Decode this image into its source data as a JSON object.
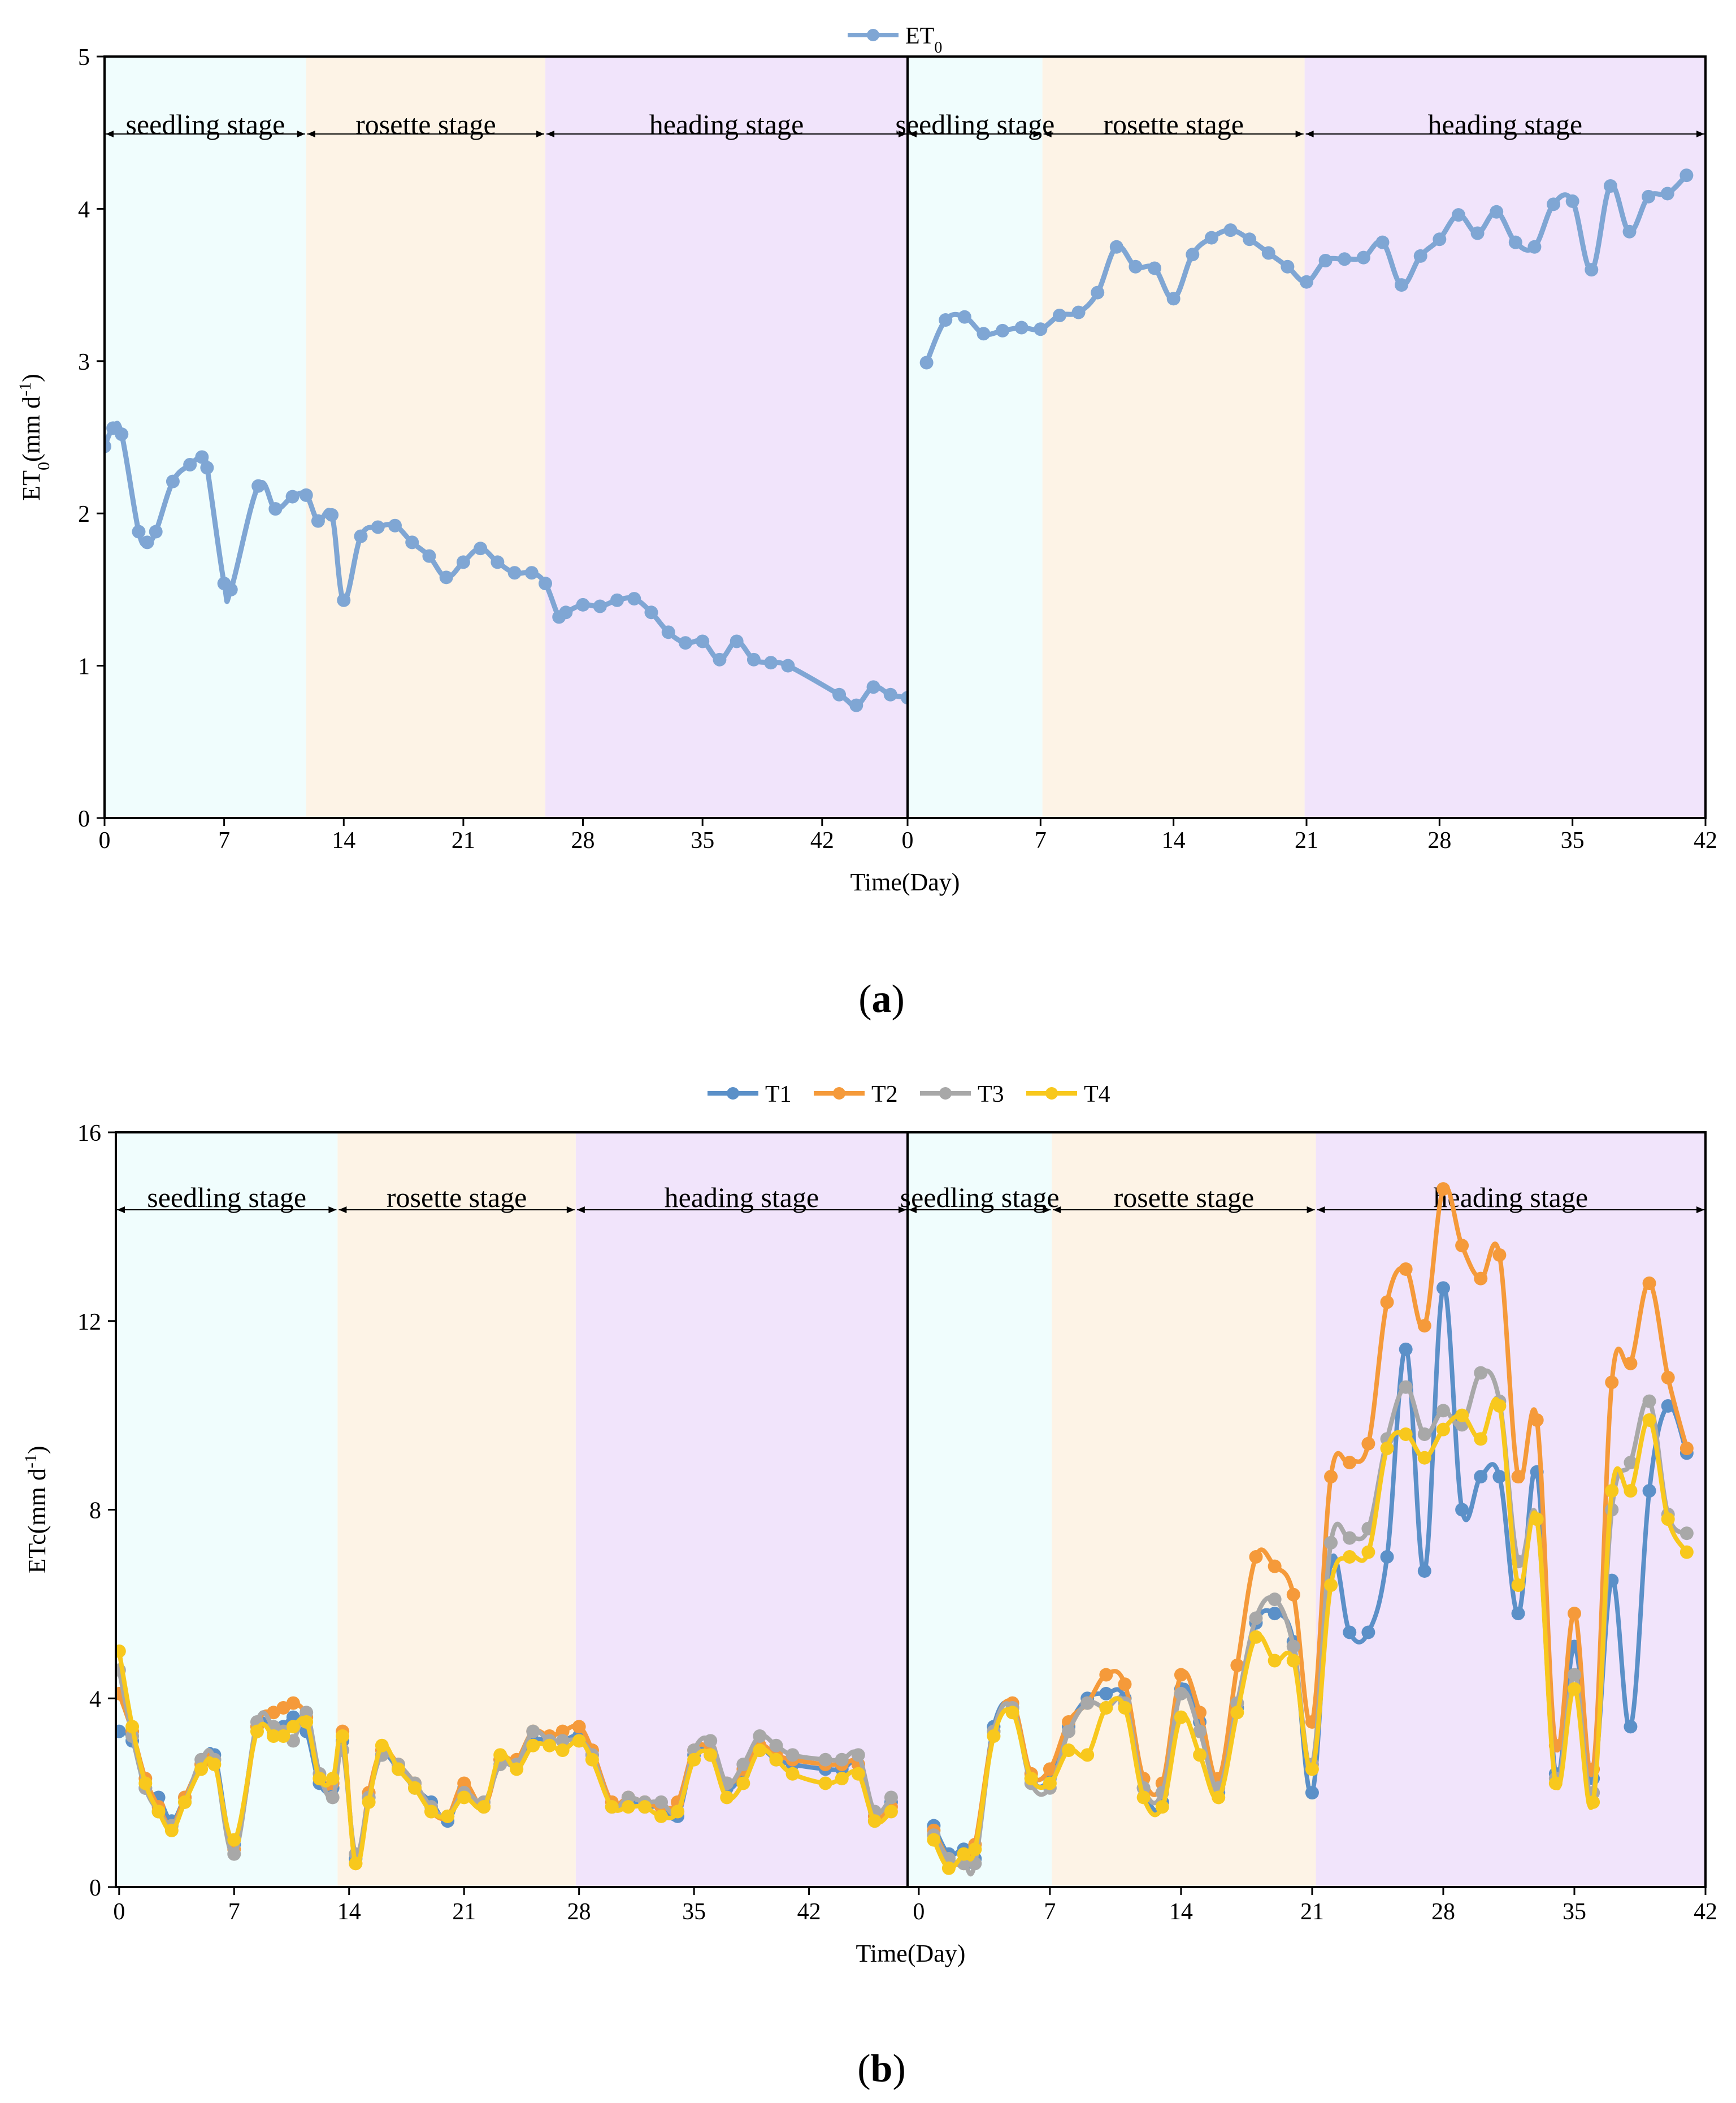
{
  "colors": {
    "seedling_bg": "#f0fdfd",
    "rosette_bg": "#fdf3e6",
    "heading_bg": "#f1e4fb",
    "ET0": "#7fa6d4",
    "T1": "#5b90c8",
    "T2": "#f59a3a",
    "T3": "#a8a8a8",
    "T4": "#f8c81d"
  },
  "chart_data": [
    {
      "type": "line",
      "panel": "a",
      "caption": "(a)",
      "ylabel": "ET0(mm d-1)",
      "ylabel_main": "ET",
      "ylabel_sub": "0",
      "ylabel_mid": "(mm d",
      "ylabel_sup": "-1",
      "ylabel_end": ")",
      "xlabel": "Time(Day)",
      "ylim": [
        0,
        5
      ],
      "yticks": [
        "0",
        "1",
        "2",
        "3",
        "4",
        "5"
      ],
      "legend": [
        {
          "name": "ET0",
          "main": "ET",
          "sub": "0"
        }
      ],
      "left": {
        "xlim": [
          0,
          47
        ],
        "xticks": [
          "0",
          "7",
          "14",
          "21",
          "28",
          "35",
          "42",
          ""
        ],
        "stages": [
          {
            "name": "seedling stage",
            "start": 0,
            "end": 11.8
          },
          {
            "name": "rosette stage",
            "start": 11.8,
            "end": 25.8
          },
          {
            "name": "heading stage",
            "start": 25.8,
            "end": 47
          }
        ],
        "series": [
          {
            "name": "ET0",
            "x": [
              0,
              0.5,
              1,
              2,
              2.5,
              3,
              4,
              5,
              5.7,
              6,
              7,
              7.4,
              9,
              10,
              11,
              11.8,
              12.5,
              13.3,
              14,
              15,
              16,
              17,
              18,
              19,
              20,
              21,
              22,
              23,
              24,
              25,
              25.8,
              26.6,
              27,
              28,
              29,
              30,
              31,
              32,
              33,
              34,
              35,
              36,
              37,
              38,
              39,
              40,
              43,
              44,
              45,
              46,
              47
            ],
            "values": [
              2.44,
              2.56,
              2.52,
              1.88,
              1.81,
              1.88,
              2.21,
              2.32,
              2.37,
              2.3,
              1.54,
              1.5,
              2.18,
              2.03,
              2.11,
              2.12,
              1.95,
              1.99,
              1.43,
              1.85,
              1.91,
              1.92,
              1.81,
              1.72,
              1.58,
              1.68,
              1.77,
              1.68,
              1.61,
              1.61,
              1.54,
              1.32,
              1.35,
              1.4,
              1.39,
              1.43,
              1.44,
              1.35,
              1.22,
              1.15,
              1.16,
              1.04,
              1.16,
              1.04,
              1.02,
              1.0,
              0.81,
              0.74,
              0.86,
              0.81,
              0.79
            ]
          }
        ]
      },
      "right": {
        "xlim": [
          0,
          42
        ],
        "xticks": [
          "0",
          "7",
          "14",
          "21",
          "28",
          "35",
          "42"
        ],
        "stages": [
          {
            "name": "seedling stage",
            "start": 0,
            "end": 7.1
          },
          {
            "name": "rosette stage",
            "start": 7.1,
            "end": 20.9
          },
          {
            "name": "heading stage",
            "start": 20.9,
            "end": 42
          }
        ],
        "series": [
          {
            "name": "ET0",
            "x": [
              1,
              2,
              3,
              4,
              5,
              6,
              7,
              8,
              9,
              10,
              11,
              12,
              13,
              14,
              15,
              16,
              17,
              18,
              19,
              20,
              21,
              22,
              23,
              24,
              25,
              26,
              27,
              28,
              29,
              30,
              31,
              32,
              33,
              34,
              35,
              36,
              37,
              38,
              39,
              40,
              41
            ],
            "values": [
              2.99,
              3.27,
              3.29,
              3.18,
              3.2,
              3.22,
              3.21,
              3.3,
              3.32,
              3.45,
              3.75,
              3.62,
              3.61,
              3.41,
              3.7,
              3.81,
              3.86,
              3.8,
              3.71,
              3.62,
              3.52,
              3.66,
              3.67,
              3.68,
              3.78,
              3.5,
              3.69,
              3.8,
              3.96,
              3.84,
              3.98,
              3.78,
              3.75,
              4.03,
              4.05,
              3.6,
              4.15,
              3.85,
              4.08,
              4.1,
              4.22
            ]
          }
        ]
      }
    },
    {
      "type": "line",
      "panel": "b",
      "caption": "(b)",
      "ylabel": "ETc(mm d-1)",
      "ylabel_main": "ETc",
      "ylabel_mid": "(mm d",
      "ylabel_sup": "-1",
      "ylabel_end": ")",
      "xlabel": "Time(Day)",
      "ylim": [
        0,
        16
      ],
      "yticks": [
        "0",
        "4",
        "8",
        "12",
        "16"
      ],
      "legend": [
        {
          "name": "T1"
        },
        {
          "name": "T2"
        },
        {
          "name": "T3"
        },
        {
          "name": "T4"
        }
      ],
      "left": {
        "xlim": [
          -0.2,
          48
        ],
        "xticks": [
          "0",
          "7",
          "14",
          "21",
          "28",
          "35",
          "42",
          ""
        ],
        "stages": [
          {
            "name": "seedling stage",
            "start": -0.2,
            "end": 13.3
          },
          {
            "name": "rosette stage",
            "start": 13.3,
            "end": 27.8
          },
          {
            "name": "heading stage",
            "start": 27.8,
            "end": 48
          }
        ],
        "x": [
          0,
          0.8,
          1.6,
          2.4,
          3.2,
          4,
          5,
          5.8,
          7,
          8.4,
          9.4,
          10,
          10.6,
          11.4,
          12.2,
          13,
          13.6,
          14.4,
          15.2,
          16,
          17,
          18,
          19,
          20,
          21,
          22.2,
          23.2,
          24.2,
          25.2,
          26.2,
          27,
          28,
          28.8,
          30,
          31,
          32,
          33,
          34,
          35,
          36,
          37,
          38,
          39,
          40,
          41,
          43,
          44,
          45,
          46,
          47
        ],
        "series": [
          {
            "name": "T1",
            "values": [
              3.3,
              3.1,
              2.1,
              1.9,
              1.4,
              1.9,
              2.6,
              2.8,
              0.9,
              3.4,
              3.3,
              3.4,
              3.6,
              3.3,
              2.2,
              2.1,
              3.1,
              0.6,
              1.9,
              2.8,
              2.5,
              2.1,
              1.8,
              1.4,
              2.1,
              1.7,
              2.7,
              2.6,
              3.1,
              3.1,
              3.1,
              3.2,
              2.8,
              1.7,
              1.8,
              1.7,
              1.7,
              1.5,
              2.8,
              2.8,
              2.1,
              2.4,
              2.9,
              2.7,
              2.6,
              2.5,
              2.5,
              2.6,
              1.4,
              1.8
            ]
          },
          {
            "name": "T2",
            "values": [
              4.1,
              3.3,
              2.3,
              1.7,
              1.3,
              1.9,
              2.6,
              2.7,
              0.8,
              3.4,
              3.7,
              3.8,
              3.9,
              3.6,
              2.3,
              2.2,
              3.3,
              0.5,
              2.0,
              2.9,
              2.6,
              2.2,
              1.6,
              1.5,
              2.2,
              1.7,
              2.7,
              2.7,
              3.3,
              3.2,
              3.3,
              3.4,
              2.9,
              1.8,
              1.9,
              1.8,
              1.7,
              1.8,
              2.9,
              2.9,
              2.2,
              2.5,
              3.0,
              2.8,
              2.7,
              2.6,
              2.6,
              2.6,
              1.5,
              1.7
            ]
          },
          {
            "name": "T3",
            "values": [
              4.6,
              3.2,
              2.1,
              1.6,
              1.3,
              1.8,
              2.7,
              2.7,
              0.7,
              3.5,
              3.4,
              3.3,
              3.1,
              3.7,
              2.4,
              1.9,
              2.9,
              0.7,
              1.9,
              2.8,
              2.6,
              2.2,
              1.7,
              1.5,
              2.0,
              1.8,
              2.6,
              2.6,
              3.3,
              3.1,
              3.1,
              3.1,
              2.8,
              1.7,
              1.9,
              1.8,
              1.8,
              1.6,
              2.9,
              3.1,
              2.2,
              2.6,
              3.2,
              3.0,
              2.8,
              2.7,
              2.7,
              2.8,
              1.6,
              1.9
            ]
          },
          {
            "name": "T4",
            "values": [
              5.0,
              3.4,
              2.2,
              1.6,
              1.2,
              1.8,
              2.5,
              2.6,
              1.0,
              3.3,
              3.2,
              3.2,
              3.4,
              3.5,
              2.3,
              2.3,
              3.2,
              0.5,
              1.8,
              3.0,
              2.5,
              2.1,
              1.6,
              1.5,
              1.9,
              1.7,
              2.8,
              2.5,
              3.0,
              3.0,
              2.9,
              3.1,
              2.7,
              1.7,
              1.7,
              1.7,
              1.5,
              1.6,
              2.7,
              2.8,
              1.9,
              2.2,
              2.9,
              2.7,
              2.4,
              2.2,
              2.3,
              2.4,
              1.4,
              1.6
            ]
          }
        ]
      },
      "right": {
        "xlim": [
          -0.6,
          42
        ],
        "xticks": [
          "0",
          "7",
          "14",
          "21",
          "28",
          "35",
          "42"
        ],
        "stages": [
          {
            "name": "seedling stage",
            "start": -0.6,
            "end": 7.1
          },
          {
            "name": "rosette stage",
            "start": 7.1,
            "end": 21.2
          },
          {
            "name": "heading stage",
            "start": 21.2,
            "end": 42
          }
        ],
        "x": [
          0.8,
          1.6,
          2.4,
          3,
          4,
          5,
          6,
          7,
          8,
          9,
          10,
          11,
          12,
          13,
          14,
          15,
          16,
          17,
          18,
          19,
          20,
          21,
          22,
          23,
          24,
          25,
          26,
          27,
          28,
          29,
          30,
          31,
          32,
          33,
          34,
          35,
          36,
          37,
          38,
          39,
          40,
          41
        ],
        "series": [
          {
            "name": "T1",
            "values": [
              1.3,
              0.7,
              0.8,
              0.6,
              3.4,
              3.8,
              2.3,
              2.3,
              3.4,
              4.0,
              4.1,
              4.0,
              2.1,
              1.8,
              4.2,
              3.5,
              2.0,
              3.8,
              5.6,
              5.8,
              5.2,
              2.0,
              6.9,
              5.4,
              5.4,
              7.0,
              11.4,
              6.7,
              12.7,
              8.0,
              8.7,
              8.7,
              5.8,
              8.8,
              2.4,
              5.1,
              2.3,
              6.5,
              3.4,
              8.4,
              10.2,
              9.2
            ]
          },
          {
            "name": "T2",
            "values": [
              1.2,
              0.6,
              0.5,
              0.9,
              3.3,
              3.9,
              2.4,
              2.5,
              3.5,
              3.9,
              4.5,
              4.3,
              2.3,
              2.2,
              4.5,
              3.7,
              2.3,
              4.7,
              7.0,
              6.8,
              6.2,
              3.5,
              8.7,
              9.0,
              9.4,
              12.4,
              13.1,
              11.9,
              14.8,
              13.6,
              12.9,
              13.4,
              8.7,
              9.9,
              3.0,
              5.8,
              2.5,
              10.7,
              11.1,
              12.8,
              10.8,
              9.3
            ]
          },
          {
            "name": "T3",
            "values": [
              1.1,
              0.6,
              0.5,
              0.5,
              3.3,
              3.8,
              2.2,
              2.1,
              3.3,
              3.9,
              3.8,
              3.9,
              2.1,
              2.0,
              4.1,
              3.3,
              2.1,
              3.9,
              5.7,
              6.1,
              5.1,
              2.6,
              7.3,
              7.4,
              7.6,
              9.5,
              10.6,
              9.6,
              10.1,
              9.8,
              10.9,
              10.3,
              6.9,
              7.8,
              2.3,
              4.5,
              2.0,
              8.0,
              9.0,
              10.3,
              7.9,
              7.5
            ]
          },
          {
            "name": "T4",
            "values": [
              1.0,
              0.4,
              0.7,
              0.8,
              3.2,
              3.7,
              2.3,
              2.2,
              2.9,
              2.8,
              3.8,
              3.8,
              1.9,
              1.7,
              3.6,
              2.8,
              1.9,
              3.7,
              5.3,
              4.8,
              4.8,
              2.5,
              6.4,
              7.0,
              7.1,
              9.3,
              9.6,
              9.1,
              9.7,
              10.0,
              9.5,
              10.2,
              6.4,
              7.8,
              2.2,
              4.2,
              1.8,
              8.4,
              8.4,
              9.9,
              7.8,
              7.1
            ]
          }
        ]
      }
    }
  ]
}
